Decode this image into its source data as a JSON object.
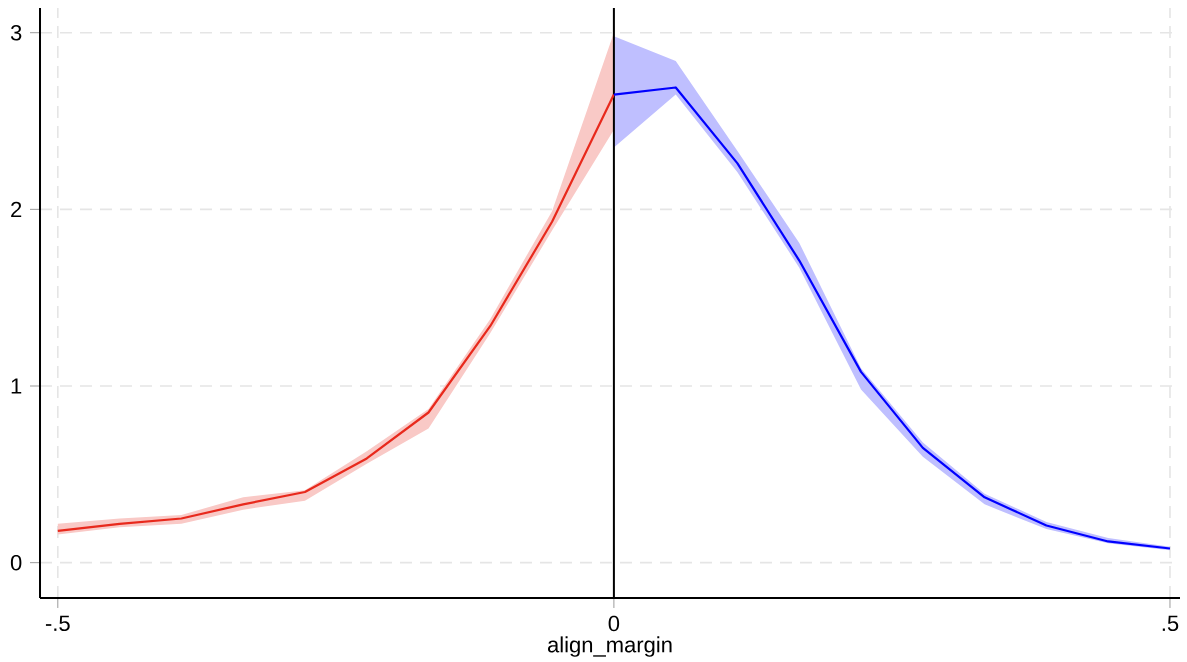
{
  "chart_data": {
    "type": "line",
    "xlabel": "align_margin",
    "series": [
      {
        "color": "#e8291c",
        "x": [
          -0.5,
          -0.4444,
          -0.3889,
          -0.3333,
          -0.2778,
          -0.2222,
          -0.1667,
          -0.1111,
          -0.0556,
          0
        ],
        "values": [
          0.18,
          0.22,
          0.25,
          0.33,
          0.4,
          0.59,
          0.85,
          1.34,
          1.93,
          2.65
        ],
        "lower": [
          0.16,
          0.2,
          0.22,
          0.3,
          0.35,
          0.56,
          0.76,
          1.3,
          1.88,
          2.45
        ],
        "upper": [
          0.22,
          0.25,
          0.27,
          0.37,
          0.41,
          0.63,
          0.87,
          1.38,
          1.99,
          3.0
        ]
      },
      {
        "color": "#0000ff",
        "x": [
          0,
          0.0556,
          0.1111,
          0.1667,
          0.2222,
          0.2778,
          0.3333,
          0.3889,
          0.4444,
          0.5
        ],
        "values": [
          2.65,
          2.69,
          2.26,
          1.71,
          1.08,
          0.65,
          0.37,
          0.21,
          0.12,
          0.08
        ],
        "lower": [
          2.35,
          2.65,
          2.21,
          1.67,
          0.98,
          0.6,
          0.33,
          0.19,
          0.11,
          0.07
        ],
        "upper": [
          2.98,
          2.84,
          2.33,
          1.81,
          1.1,
          0.68,
          0.39,
          0.23,
          0.14,
          0.09
        ]
      }
    ],
    "xlim": [
      -0.516,
      0.509
    ],
    "ylim": [
      -0.2,
      3.14
    ],
    "xticks": [
      {
        "value": -0.5,
        "label": "-.5"
      },
      {
        "value": 0,
        "label": "0"
      },
      {
        "value": 0.5,
        "label": ".5"
      }
    ],
    "yticks": [
      0,
      1,
      2,
      3
    ],
    "ref_lines": [
      {
        "axis": "x",
        "value": 0,
        "color": "#000000"
      }
    ],
    "grid": true,
    "marker": "none",
    "line_style": "solid"
  }
}
